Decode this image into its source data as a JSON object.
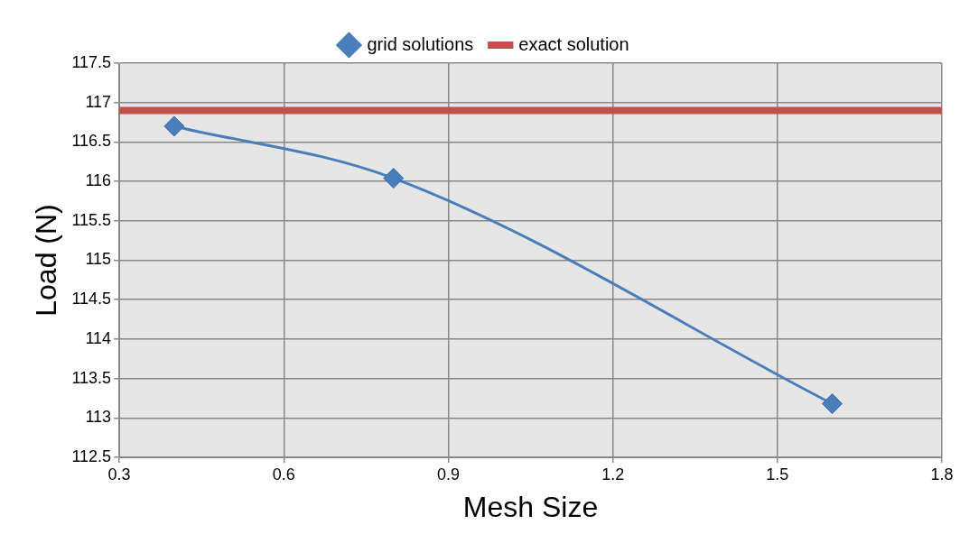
{
  "chart_data": {
    "type": "line",
    "xlabel": "Mesh Size",
    "ylabel": "Load (N)",
    "xlim": [
      0.3,
      1.8
    ],
    "xticks": [
      0.3,
      0.6,
      0.9,
      1.2,
      1.5,
      1.8
    ],
    "ylim": [
      112.5,
      117.5
    ],
    "yticks": [
      112.5,
      113,
      113.5,
      114,
      114.5,
      115,
      115.5,
      116,
      116.5,
      117,
      117.5
    ],
    "grid": true,
    "legend": "top",
    "series": [
      {
        "name": "grid solutions",
        "type": "line",
        "marker": "diamond",
        "color": "#4a7ebb",
        "x": [
          0.4,
          0.8,
          1.6
        ],
        "values": [
          116.7,
          116.04,
          113.18
        ]
      },
      {
        "name": "exact solution",
        "type": "line",
        "marker": "none",
        "color": "#c0504d",
        "x": [
          0.3,
          1.8
        ],
        "values": [
          116.9,
          116.9
        ]
      }
    ]
  }
}
